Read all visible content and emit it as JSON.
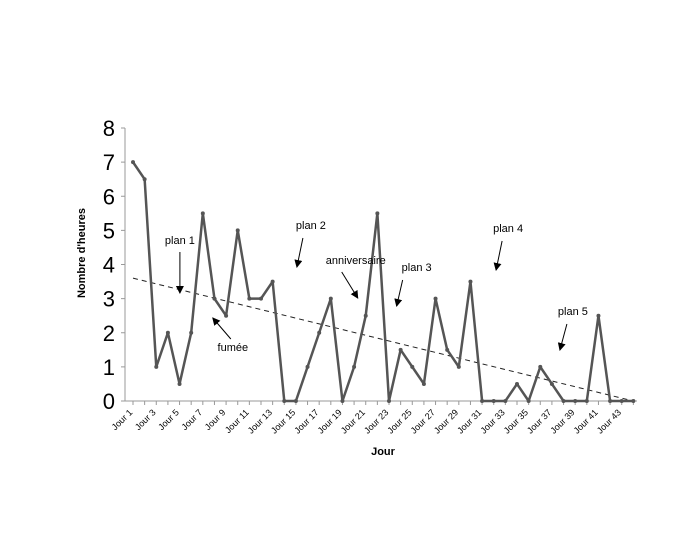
{
  "chart_data": {
    "type": "line",
    "title": "",
    "xlabel": "Jour",
    "ylabel": "Nombre d'heures",
    "ylim": [
      0,
      8
    ],
    "yticks": [
      0,
      1,
      2,
      3,
      4,
      5,
      6,
      7,
      8
    ],
    "grid": false,
    "categories": [
      "Jour 1",
      "Jour 2",
      "Jour 3",
      "Jour 4",
      "Jour 5",
      "Jour 6",
      "Jour 7",
      "Jour 8",
      "Jour 9",
      "Jour 10",
      "Jour 11",
      "Jour 12",
      "Jour 13",
      "Jour 14",
      "Jour 15",
      "Jour 16",
      "Jour 17",
      "Jour 18",
      "Jour 19",
      "Jour 20",
      "Jour 21",
      "Jour 22",
      "Jour 23",
      "Jour 24",
      "Jour 25",
      "Jour 26",
      "Jour 27",
      "Jour 28",
      "Jour 29",
      "Jour 30",
      "Jour 31",
      "Jour 32",
      "Jour 33",
      "Jour 34",
      "Jour 35",
      "Jour 36",
      "Jour 37",
      "Jour 38",
      "Jour 39",
      "Jour 40",
      "Jour 41",
      "Jour 42",
      "Jour 43",
      "Jour 44"
    ],
    "tick_labels": [
      "Jour 1",
      "Jour 3",
      "Jour 5",
      "Jour 7",
      "Jour 9",
      "Jour 11",
      "Jour 13",
      "Jour 15",
      "Jour 17",
      "Jour 19",
      "Jour 21",
      "Jour 23",
      "Jour 25",
      "Jour 27",
      "Jour 29",
      "Jour 31",
      "Jour 33",
      "Jour 35",
      "Jour 37",
      "Jour 39",
      "Jour 41",
      "Jour 43"
    ],
    "series": [
      {
        "values": [
          7,
          6.5,
          1,
          2,
          0.5,
          2,
          5.5,
          3,
          2.5,
          5,
          3,
          3,
          3.5,
          0,
          0,
          1,
          2,
          3,
          0,
          1,
          2.5,
          5.5,
          0,
          1.5,
          1,
          0.5,
          3,
          1.5,
          1,
          3.5,
          0,
          0,
          0,
          0.5,
          0,
          1,
          0.5,
          0,
          0,
          0,
          2.5,
          0,
          0,
          0
        ]
      }
    ],
    "trendline": {
      "style": "dashed",
      "start": 3.6,
      "end": 0
    },
    "annotations": [
      {
        "text": "plan 1",
        "category": "Jour 4"
      },
      {
        "text": "fumée",
        "category": "Jour 7"
      },
      {
        "text": "plan 2",
        "category": "Jour 15"
      },
      {
        "text": "anniversaire",
        "category": "Jour 21"
      },
      {
        "text": "plan 3",
        "category": "Jour 24"
      },
      {
        "text": "plan 4",
        "category": "Jour 31"
      },
      {
        "text": "plan 5",
        "category": "Jour 37"
      }
    ],
    "colors": {
      "line": "#555555",
      "trend": "#222222",
      "axis": "#999999"
    }
  }
}
